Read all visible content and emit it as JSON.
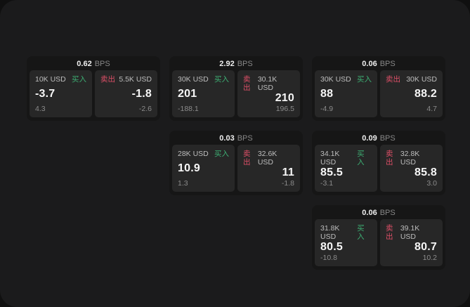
{
  "colors": {
    "buy": "#3dae73",
    "sell": "#dd4f67",
    "outer_bg": "#101010",
    "panel_bg": "#1b1b1c",
    "card_bg": "#161616",
    "tile_bg": "#272727"
  },
  "cards": [
    {
      "bps": "0.62",
      "unit": "BPS",
      "grid": {
        "row": 1,
        "col": 1
      },
      "buy": {
        "amount": "10K USD",
        "side": "买入",
        "price": "-3.7",
        "delta": "4.3"
      },
      "sell": {
        "side": "卖出",
        "amount": "5.5K USD",
        "price": "-1.8",
        "delta": "-2.6"
      }
    },
    {
      "bps": "2.92",
      "unit": "BPS",
      "grid": {
        "row": 1,
        "col": 2
      },
      "buy": {
        "amount": "30K USD",
        "side": "买入",
        "price": "201",
        "delta": "-188.1"
      },
      "sell": {
        "side": "卖出",
        "amount": "30.1K USD",
        "price": "210",
        "delta": "196.5"
      }
    },
    {
      "bps": "0.06",
      "unit": "BPS",
      "grid": {
        "row": 1,
        "col": 3
      },
      "buy": {
        "amount": "30K USD",
        "side": "买入",
        "price": "88",
        "delta": "-4.9"
      },
      "sell": {
        "side": "卖出",
        "amount": "30K USD",
        "price": "88.2",
        "delta": "4.7"
      }
    },
    {
      "bps": "0.03",
      "unit": "BPS",
      "grid": {
        "row": 2,
        "col": 2
      },
      "buy": {
        "amount": "28K USD",
        "side": "买入",
        "price": "10.9",
        "delta": "1.3"
      },
      "sell": {
        "side": "卖出",
        "amount": "32.6K USD",
        "price": "11",
        "delta": "-1.8"
      }
    },
    {
      "bps": "0.09",
      "unit": "BPS",
      "grid": {
        "row": 2,
        "col": 3
      },
      "buy": {
        "amount": "34.1K USD",
        "side": "买入",
        "price": "85.5",
        "delta": "-3.1"
      },
      "sell": {
        "side": "卖出",
        "amount": "32.8K USD",
        "price": "85.8",
        "delta": "3.0"
      }
    },
    {
      "bps": "0.06",
      "unit": "BPS",
      "grid": {
        "row": 3,
        "col": 3
      },
      "buy": {
        "amount": "31.8K USD",
        "side": "买入",
        "price": "80.5",
        "delta": "-10.8"
      },
      "sell": {
        "side": "卖出",
        "amount": "39.1K USD",
        "price": "80.7",
        "delta": "10.2"
      }
    }
  ]
}
